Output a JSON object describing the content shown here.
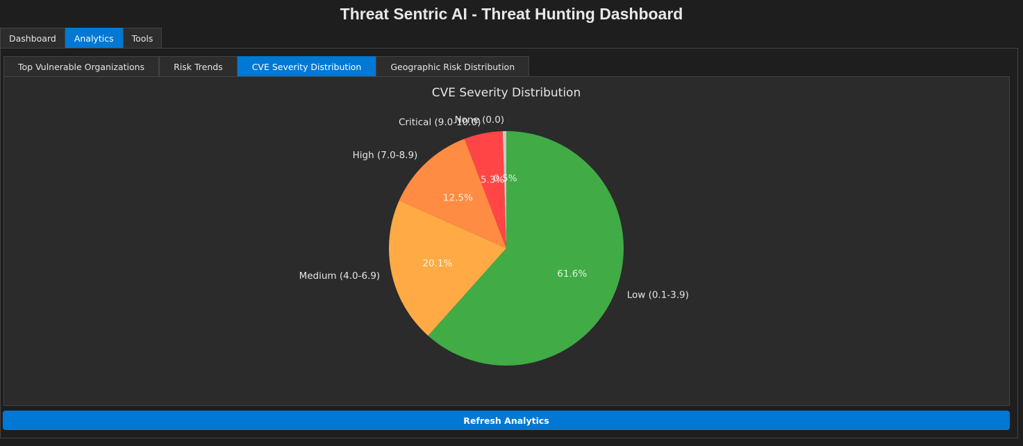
{
  "app": {
    "title": "Threat Sentric AI - Threat Hunting Dashboard"
  },
  "main_tabs": [
    {
      "label": "Dashboard",
      "active": false
    },
    {
      "label": "Analytics",
      "active": true
    },
    {
      "label": "Tools",
      "active": false
    }
  ],
  "sub_tabs": [
    {
      "label": "Top Vulnerable Organizations",
      "active": false
    },
    {
      "label": "Risk Trends",
      "active": false
    },
    {
      "label": "CVE Severity Distribution",
      "active": true
    },
    {
      "label": "Geographic Risk Distribution",
      "active": false
    }
  ],
  "chart_data": {
    "type": "pie",
    "title": "CVE Severity Distribution",
    "start_angle_deg": 90,
    "direction": "counterclockwise",
    "slices": [
      {
        "label": "None (0.0)",
        "value": 0.5,
        "pct_label": "0.5%",
        "color": "#c8c8c8"
      },
      {
        "label": "Critical (9.0-10.0)",
        "value": 5.3,
        "pct_label": "5.3%",
        "color": "#ff4545"
      },
      {
        "label": "High (7.0-8.9)",
        "value": 12.5,
        "pct_label": "12.5%",
        "color": "#ff8c42"
      },
      {
        "label": "Medium (4.0-6.9)",
        "value": 20.1,
        "pct_label": "20.1%",
        "color": "#ffaa44"
      },
      {
        "label": "Low (0.1-3.9)",
        "value": 61.6,
        "pct_label": "61.6%",
        "color": "#41ab45"
      }
    ]
  },
  "actions": {
    "refresh_label": "Refresh Analytics"
  }
}
